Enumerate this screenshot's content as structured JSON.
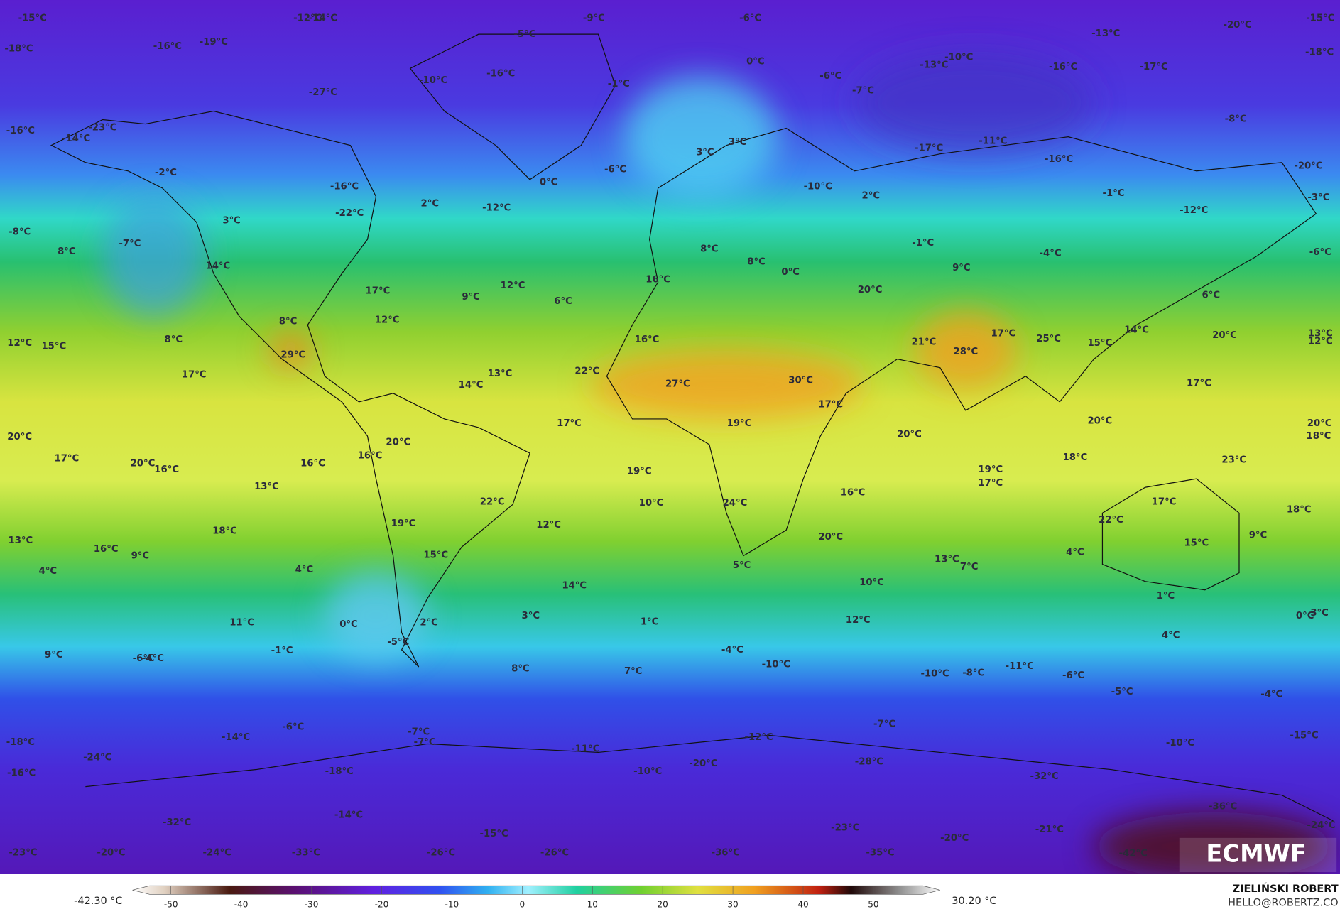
{
  "labels": [
    "-15°C",
    "-18°C",
    "-12°C",
    "-14°C",
    "-19°C",
    "-16°C",
    "-5°C",
    "-9°C",
    "-6°C",
    "-20°C",
    "-15°C",
    "-18°C",
    "-13°C",
    "-10°C",
    "-13°C",
    "-16°C",
    "-17°C",
    "-16°C",
    "-10°C",
    "0°C",
    "-6°C",
    "-7°C",
    "-1°C",
    "-27°C",
    "-16°C",
    "-14°C",
    "-23°C",
    "3°C",
    "3°C",
    "-6°C",
    "0°C",
    "-8°C",
    "-11°C",
    "-17°C",
    "-16°C",
    "-20°C",
    "-2°C",
    "-16°C",
    "-22°C",
    "2°C",
    "-12°C",
    "-10°C",
    "2°C",
    "-1°C",
    "-12°C",
    "-3°C",
    "-8°C",
    "3°C",
    "-7°C",
    "8°C",
    "-1°C",
    "-4°C",
    "-6°C",
    "14°C",
    "8°C",
    "8°C",
    "0°C",
    "9°C",
    "16°C",
    "12°C",
    "17°C",
    "9°C",
    "6°C",
    "20°C",
    "6°C",
    "12°C",
    "8°C",
    "14°C",
    "13°C",
    "20°C",
    "17°C",
    "25°C",
    "21°C",
    "28°C",
    "15°C",
    "8°C",
    "12°C",
    "15°C",
    "12°C",
    "29°C",
    "16°C",
    "17°C",
    "13°C",
    "22°C",
    "30°C",
    "27°C",
    "14°C",
    "17°C",
    "17°C",
    "17°C",
    "19°C",
    "20°C",
    "20°C",
    "20°C",
    "20°C",
    "18°C",
    "20°C",
    "16°C",
    "17°C",
    "20°C",
    "16°C",
    "16°C",
    "19°C",
    "19°C",
    "17°C",
    "18°C",
    "23°C",
    "13°C",
    "16°C",
    "22°C",
    "10°C",
    "24°C",
    "17°C",
    "18°C",
    "19°C",
    "12°C",
    "22°C",
    "13°C",
    "18°C",
    "16°C",
    "20°C",
    "15°C",
    "9°C",
    "9°C",
    "15°C",
    "4°C",
    "5°C",
    "13°C",
    "7°C",
    "4°C",
    "4°C",
    "14°C",
    "10°C",
    "1°C",
    "11°C",
    "0°C",
    "3°C",
    "1°C",
    "12°C",
    "0°C",
    "3°C",
    "2°C",
    "4°C",
    "-5°C",
    "-6°C",
    "-4°C",
    "-1°C",
    "9°C",
    "-4°C",
    "-10°C",
    "8°C",
    "7°C",
    "-11°C",
    "-10°C",
    "-8°C",
    "-6°C",
    "-5°C",
    "-4°C",
    "-6°C",
    "-14°C",
    "-7°C",
    "-7°C",
    "-12°C",
    "-15°C",
    "-18°C",
    "-7°C",
    "-10°C",
    "-11°C",
    "-24°C",
    "-20°C",
    "-28°C",
    "-16°C",
    "-18°C",
    "-10°C",
    "-32°C",
    "-36°C",
    "-14°C",
    "-32°C",
    "-23°C",
    "-21°C",
    "-24°C",
    "-15°C",
    "-20°C",
    "-23°C",
    "-20°C",
    "-24°C",
    "-33°C",
    "-26°C",
    "-26°C",
    "-36°C",
    "-35°C",
    "-42°C"
  ],
  "colorbar": {
    "min_label": "-42.30 °C",
    "max_label": "30.20 °C",
    "ticks": [
      -50,
      -40,
      -30,
      -20,
      -10,
      0,
      10,
      20,
      30,
      40,
      50
    ]
  },
  "logo": "ECMWF",
  "author": "ZIELIŃSKI ROBERT",
  "contact": "HELLO@ROBERTZ.CO"
}
